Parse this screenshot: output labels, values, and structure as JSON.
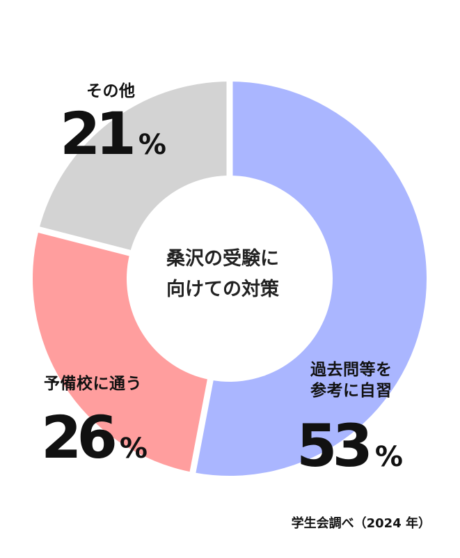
{
  "chart_data": {
    "type": "pie",
    "categories": [
      "過去問等を参考に自習",
      "予備校に通う",
      "その他"
    ],
    "values": [
      53,
      26,
      21
    ],
    "unit": "%",
    "colors": [
      "#aab6ff",
      "#ff9e9e",
      "#d3d3d3"
    ],
    "center_text": [
      "桑沢の受験に",
      "向けての対策"
    ]
  },
  "labels": {
    "slice0": {
      "line1": "過去問等を",
      "line2": "参考に自習",
      "value": "53",
      "unit": "%"
    },
    "slice1": {
      "line1": "予備校に通う",
      "value": "26",
      "unit": "%"
    },
    "slice2": {
      "line1": "その他",
      "value": "21",
      "unit": "%"
    }
  },
  "source": "学生会調べ（2024 年）"
}
